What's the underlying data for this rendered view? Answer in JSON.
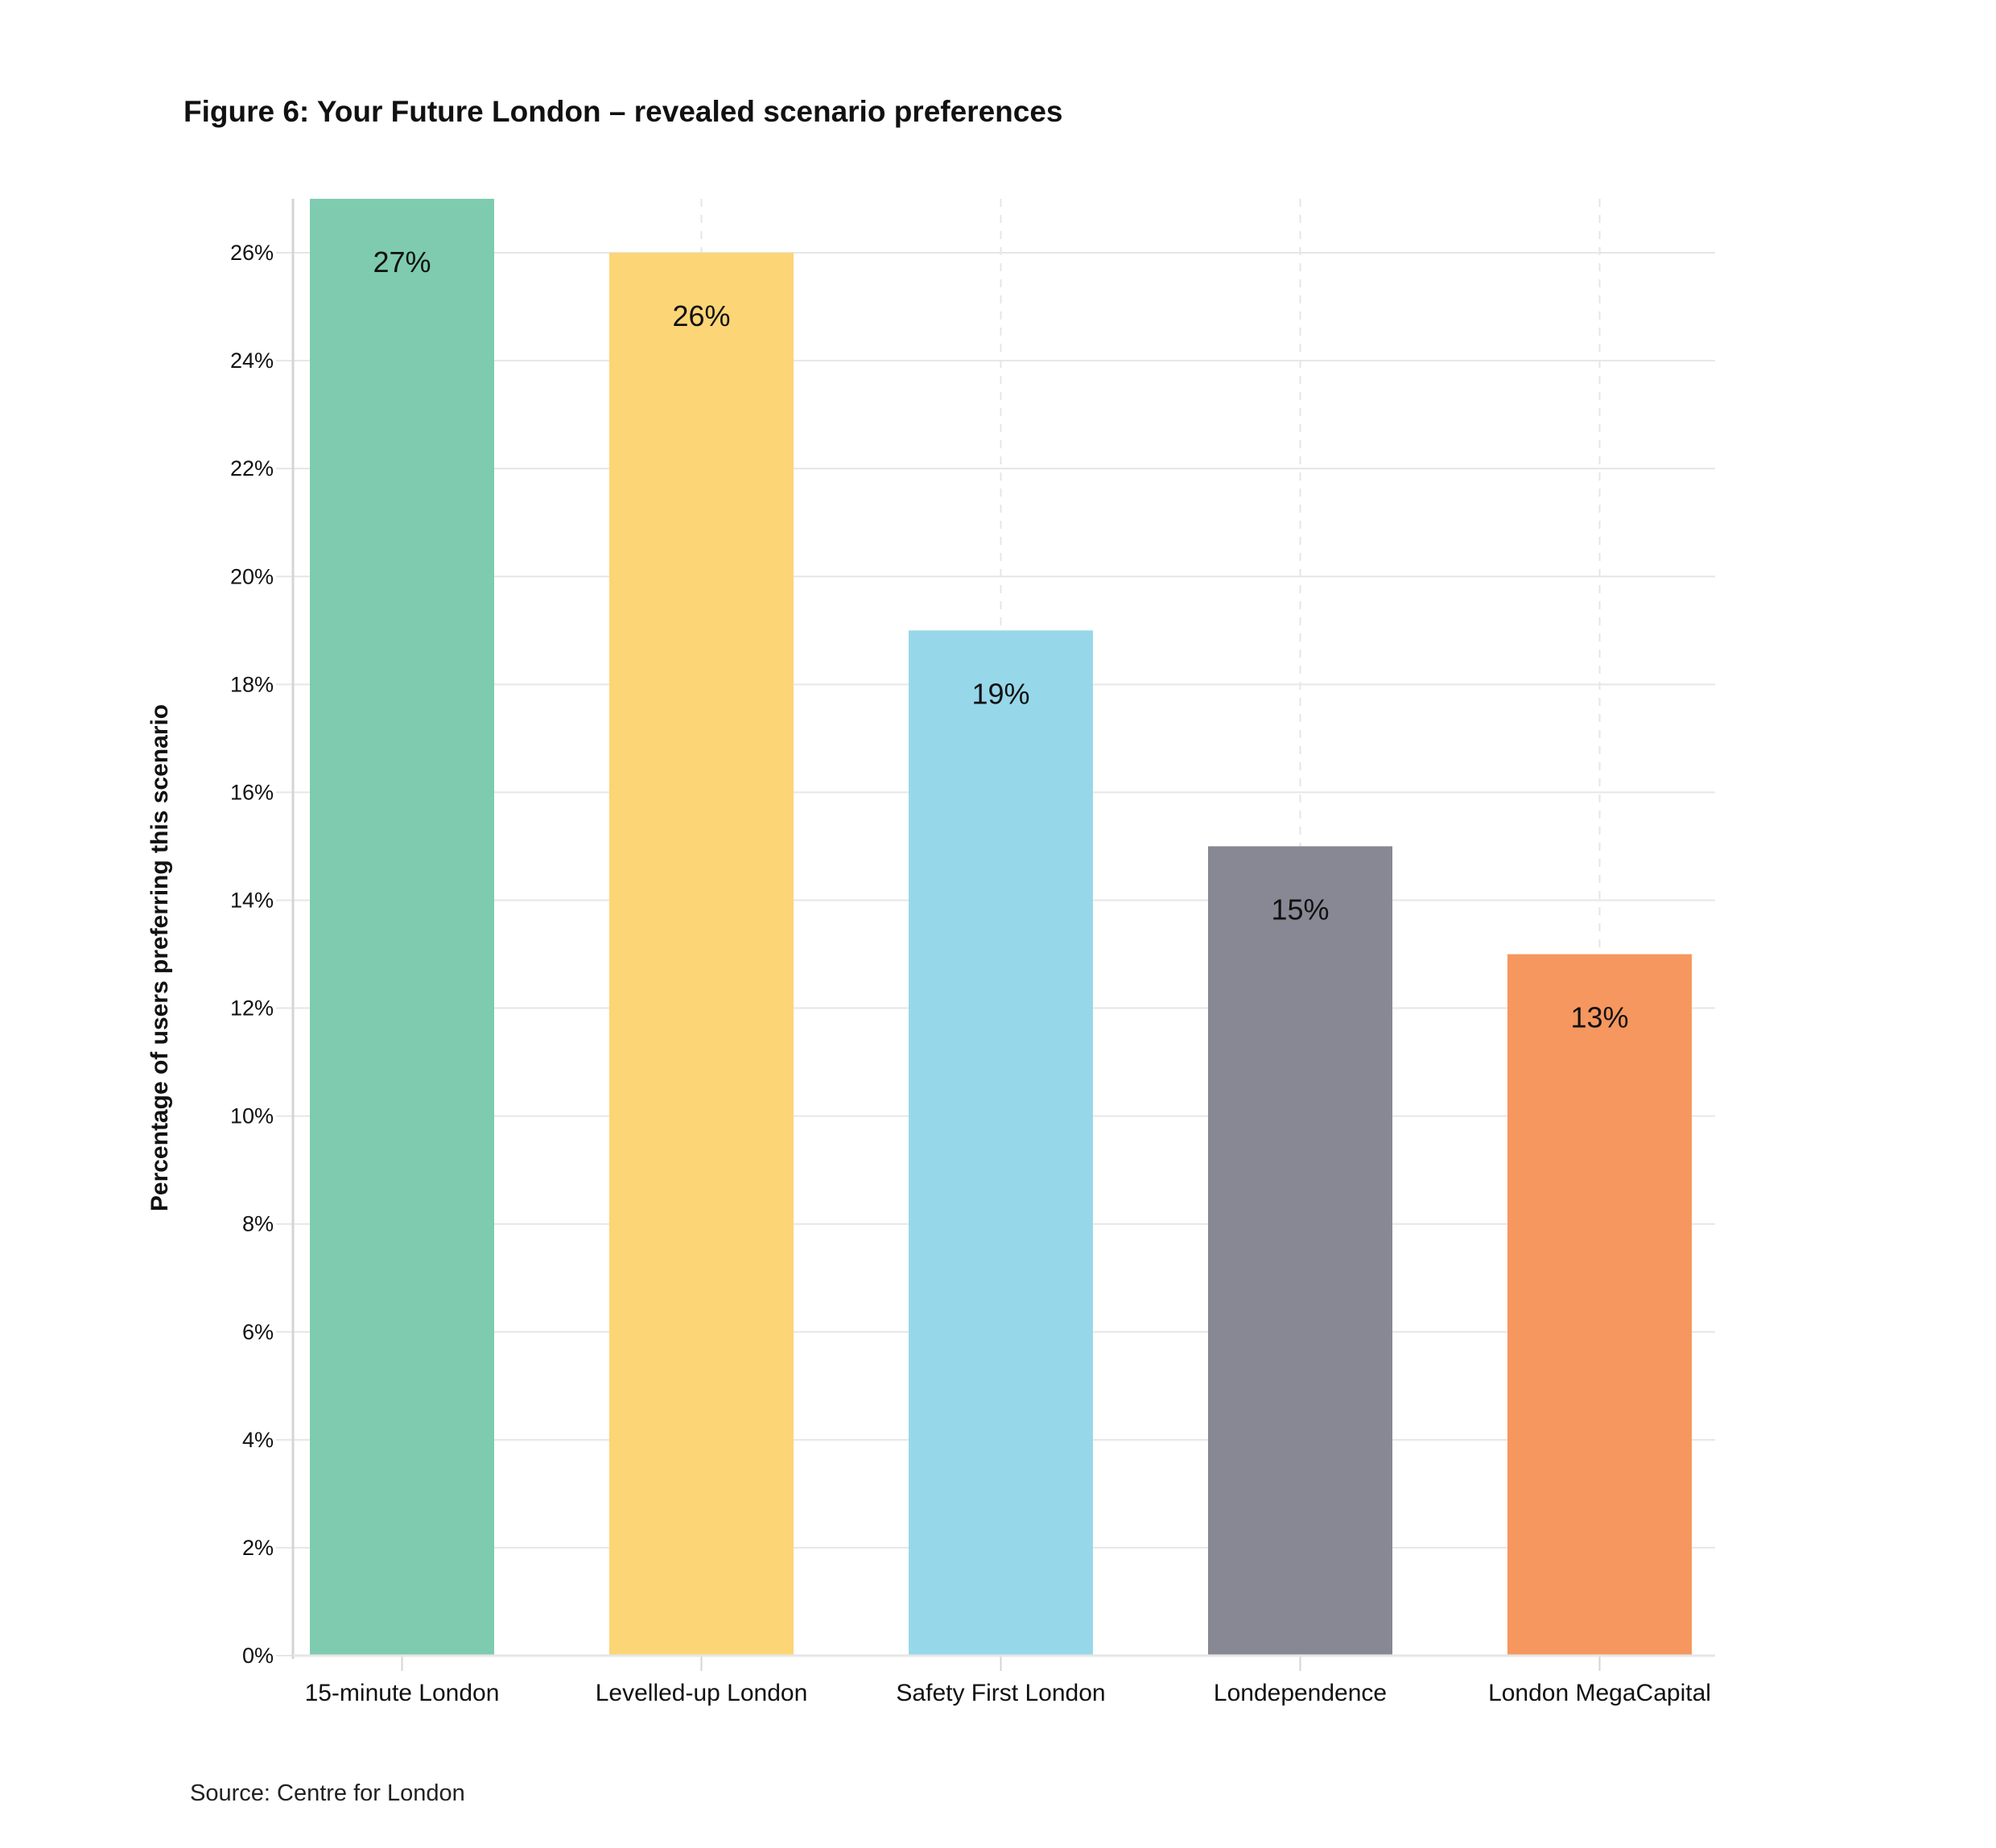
{
  "chart_data": {
    "type": "bar",
    "title": "Figure 6: Your Future London – revealed scenario preferences",
    "xlabel": "",
    "ylabel": "Percentage of users preferring this scenario",
    "categories": [
      "15-minute London",
      "Levelled-up London",
      "Safety First London",
      "Londependence",
      "London MegaCapital"
    ],
    "values": [
      27,
      26,
      19,
      15,
      13
    ],
    "value_labels": [
      "27%",
      "26%",
      "19%",
      "15%",
      "13%"
    ],
    "colors": [
      "#7ECBAF",
      "#FCD576",
      "#96D8EA",
      "#878893",
      "#F5975F"
    ],
    "ylim": [
      0,
      27
    ],
    "yticks": [
      0,
      2,
      4,
      6,
      8,
      10,
      12,
      14,
      16,
      18,
      20,
      22,
      24,
      26
    ],
    "ytick_labels": [
      "0%",
      "2%",
      "4%",
      "6%",
      "8%",
      "10%",
      "12%",
      "14%",
      "16%",
      "18%",
      "20%",
      "22%",
      "24%",
      "26%"
    ],
    "grid": true,
    "source": "Source: Centre for London"
  }
}
